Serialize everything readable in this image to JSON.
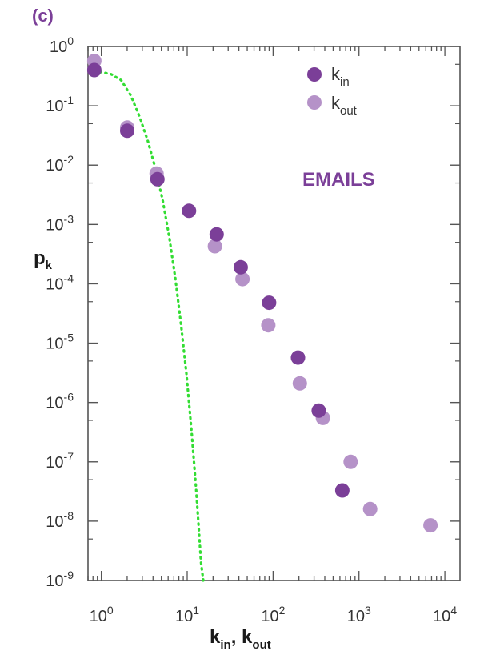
{
  "chart_data": {
    "type": "scatter",
    "panel_label": "(c)",
    "annotation": "EMAILS",
    "xlabel": {
      "base": "k",
      "sub1": "in",
      "sep": ", ",
      "sub2": "out"
    },
    "ylabel": {
      "base": "p",
      "sub": "k"
    },
    "xscale": "log",
    "yscale": "log",
    "xlim": [
      0.7,
      15000
    ],
    "ylim": [
      1e-09,
      1
    ],
    "x_tick_labels": [
      {
        "value": 1,
        "base": "10",
        "exp": "0"
      },
      {
        "value": 10,
        "base": "10",
        "exp": "1"
      },
      {
        "value": 100,
        "base": "10",
        "exp": "2"
      },
      {
        "value": 1000,
        "base": "10",
        "exp": "3"
      },
      {
        "value": 10000,
        "base": "10",
        "exp": "4"
      }
    ],
    "y_tick_labels": [
      {
        "value": 1,
        "base": "10",
        "exp": "0"
      },
      {
        "value": 0.1,
        "base": "10",
        "exp": "-1"
      },
      {
        "value": 0.01,
        "base": "10",
        "exp": "-2"
      },
      {
        "value": 0.001,
        "base": "10",
        "exp": "-3"
      },
      {
        "value": 0.0001,
        "base": "10",
        "exp": "-4"
      },
      {
        "value": 1e-05,
        "base": "10",
        "exp": "-5"
      },
      {
        "value": 1e-06,
        "base": "10",
        "exp": "-6"
      },
      {
        "value": 1e-07,
        "base": "10",
        "exp": "-7"
      },
      {
        "value": 1e-08,
        "base": "10",
        "exp": "-8"
      },
      {
        "value": 1e-09,
        "base": "10",
        "exp": "-9"
      }
    ],
    "legend_position": "top-right",
    "grid": false,
    "series": [
      {
        "name_base": "k",
        "name_sub": "in",
        "color": "#7b3f98",
        "points": [
          {
            "x": 0.83,
            "y": 0.4
          },
          {
            "x": 2.0,
            "y": 0.038
          },
          {
            "x": 4.5,
            "y": 0.0058
          },
          {
            "x": 10.5,
            "y": 0.0017
          },
          {
            "x": 22,
            "y": 0.00068
          },
          {
            "x": 42,
            "y": 0.00019
          },
          {
            "x": 90,
            "y": 4.8e-05
          },
          {
            "x": 195,
            "y": 5.7e-06
          },
          {
            "x": 340,
            "y": 7.3e-07
          },
          {
            "x": 640,
            "y": 3.3e-08
          }
        ]
      },
      {
        "name_base": "k",
        "name_sub": "out",
        "color": "#b592c8",
        "points": [
          {
            "x": 0.83,
            "y": 0.57
          },
          {
            "x": 2.0,
            "y": 0.043
          },
          {
            "x": 4.4,
            "y": 0.0072
          },
          {
            "x": 21,
            "y": 0.00043
          },
          {
            "x": 44,
            "y": 0.00012
          },
          {
            "x": 88,
            "y": 2e-05
          },
          {
            "x": 205,
            "y": 2.1e-06
          },
          {
            "x": 380,
            "y": 5.5e-07
          },
          {
            "x": 800,
            "y": 1e-07
          },
          {
            "x": 1350,
            "y": 1.6e-08
          },
          {
            "x": 6800,
            "y": 8.5e-09
          }
        ]
      }
    ],
    "curves": [
      {
        "style": "dotted",
        "color": "#33dd33",
        "points": [
          {
            "x": 0.83,
            "y": 0.36
          },
          {
            "x": 1.0,
            "y": 0.37
          },
          {
            "x": 1.3,
            "y": 0.34
          },
          {
            "x": 1.7,
            "y": 0.27
          },
          {
            "x": 2.2,
            "y": 0.15
          },
          {
            "x": 2.8,
            "y": 0.065
          },
          {
            "x": 3.5,
            "y": 0.025
          },
          {
            "x": 4.3,
            "y": 0.0085
          },
          {
            "x": 5.2,
            "y": 0.0025
          },
          {
            "x": 6.2,
            "y": 0.0006
          },
          {
            "x": 7.3,
            "y": 0.00012
          },
          {
            "x": 8.5,
            "y": 2e-05
          },
          {
            "x": 9.8,
            "y": 3e-06
          },
          {
            "x": 11.3,
            "y": 3e-07
          },
          {
            "x": 12.8,
            "y": 3e-08
          },
          {
            "x": 14.5,
            "y": 2e-09
          },
          {
            "x": 15.4,
            "y": 1e-09
          }
        ]
      }
    ],
    "colors": {
      "panel_label": "#7b3f98",
      "annotation": "#7b3f98",
      "axis": "#555555"
    }
  }
}
